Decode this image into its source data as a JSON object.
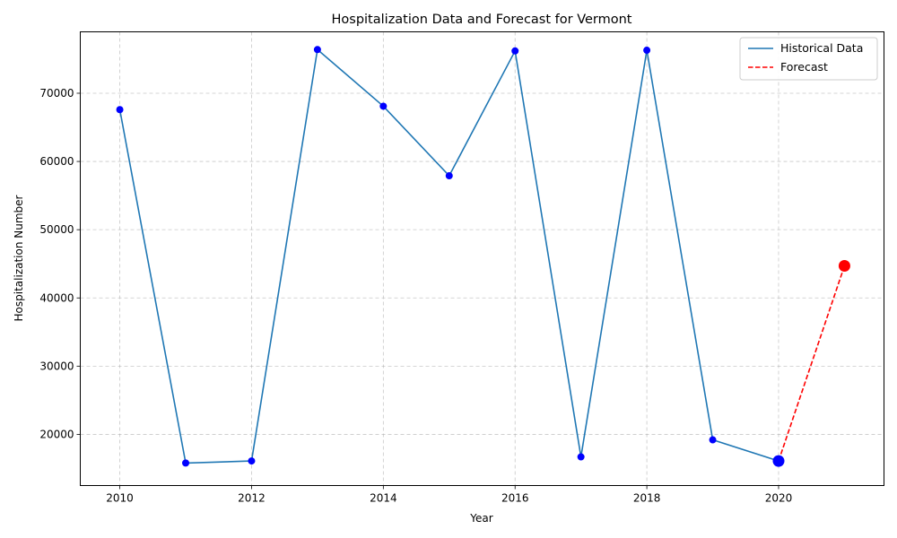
{
  "chart_data": {
    "type": "line",
    "title": "Hospitalization Data and Forecast for Vermont",
    "xlabel": "Year",
    "ylabel": "Hospitalization Number",
    "xlim": [
      2009.4,
      2021.6
    ],
    "ylim": [
      12500,
      79000
    ],
    "x_ticks": [
      2010,
      2012,
      2014,
      2016,
      2018,
      2020
    ],
    "y_ticks": [
      20000,
      30000,
      40000,
      50000,
      60000,
      70000
    ],
    "grid": true,
    "legend_position": "top-right",
    "series": [
      {
        "name": "Historical Data",
        "style": "solid",
        "color": "#1f77b4",
        "marker_color": "#0000ff",
        "x": [
          2010,
          2011,
          2012,
          2013,
          2014,
          2015,
          2016,
          2017,
          2018,
          2019,
          2020
        ],
        "values": [
          67600,
          15800,
          16100,
          76400,
          68100,
          57900,
          76200,
          16700,
          76300,
          19200,
          16100
        ]
      },
      {
        "name": "Forecast",
        "style": "dashed",
        "color": "#ff0000",
        "marker_color": "#ff0000",
        "x": [
          2020,
          2021
        ],
        "values": [
          16100,
          44700
        ]
      }
    ]
  }
}
